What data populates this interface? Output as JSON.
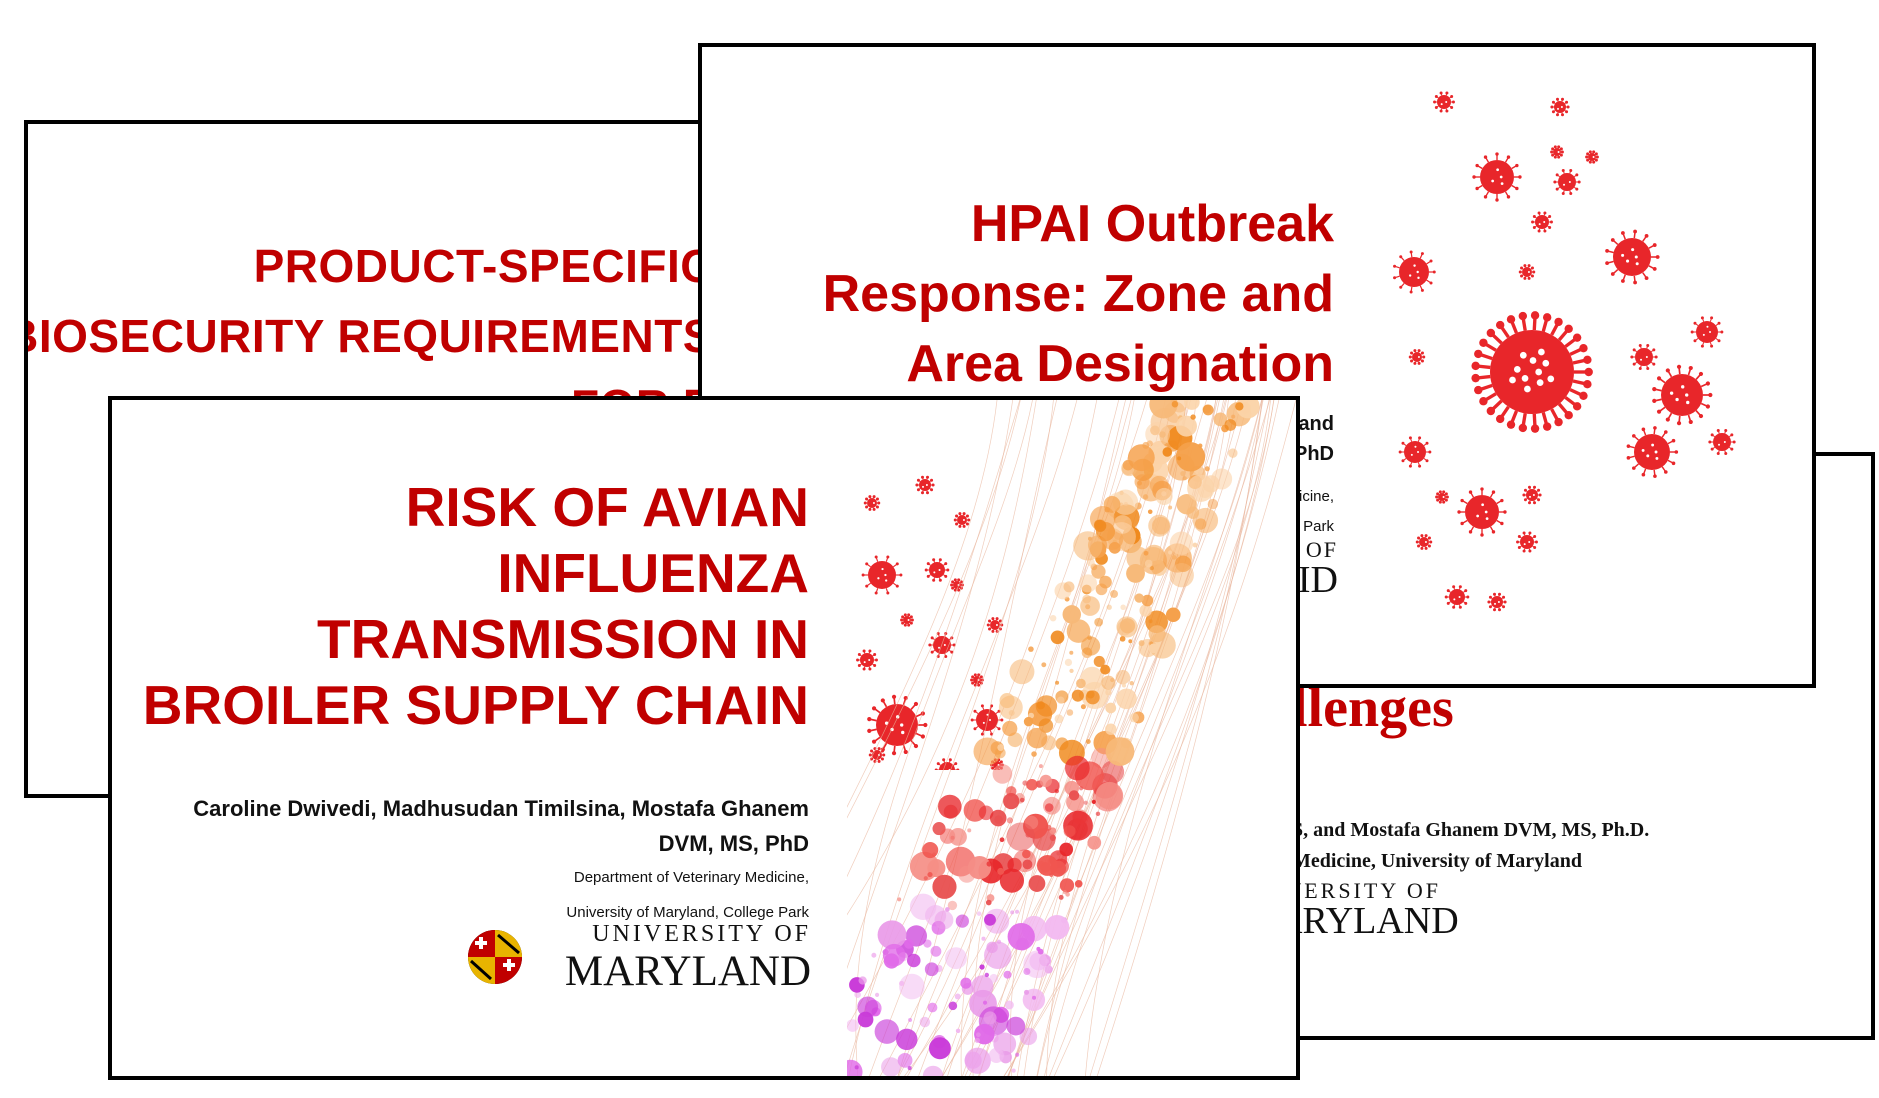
{
  "slides": {
    "product": {
      "title": "PRODUCT-SPECIFIC BIOSECURITY REQUIREMENTS FOR P"
    },
    "challenge": {
      "title": "llenges",
      "authors": "S, and Mostafa Ghanem DVM, MS, Ph.D.",
      "dept": "Medicine, University of Maryland",
      "logo": {
        "line1": "IVERSITY OF",
        "line2": "ARYLAND"
      }
    },
    "hpai": {
      "title": "HPAI Outbreak Response: Zone and Area Designation",
      "authors_a": "and",
      "authors_b": "PhD",
      "dept_a": "dicine,",
      "dept_b": "e Park",
      "logo": {
        "line1": "OF",
        "line2": "ID"
      }
    },
    "risk": {
      "title": "RISK OF AVIAN INFLUENZA TRANSMISSION IN BROILER SUPPLY CHAIN",
      "authors": "Caroline Dwivedi, Madhusudan Timilsina, Mostafa Ghanem DVM, MS, PhD",
      "dept_a": "Department of Veterinary Medicine,",
      "dept_b": "University of Maryland, College Park",
      "logo": {
        "line1": "UNIVERSITY OF",
        "line2": "MARYLAND"
      }
    }
  },
  "colors": {
    "title_red": "#c00000",
    "virus_red": "#e8262a",
    "border": "#000000"
  },
  "icons": [
    "virus-icon",
    "university-of-maryland-logo",
    "particle-stream-art"
  ]
}
